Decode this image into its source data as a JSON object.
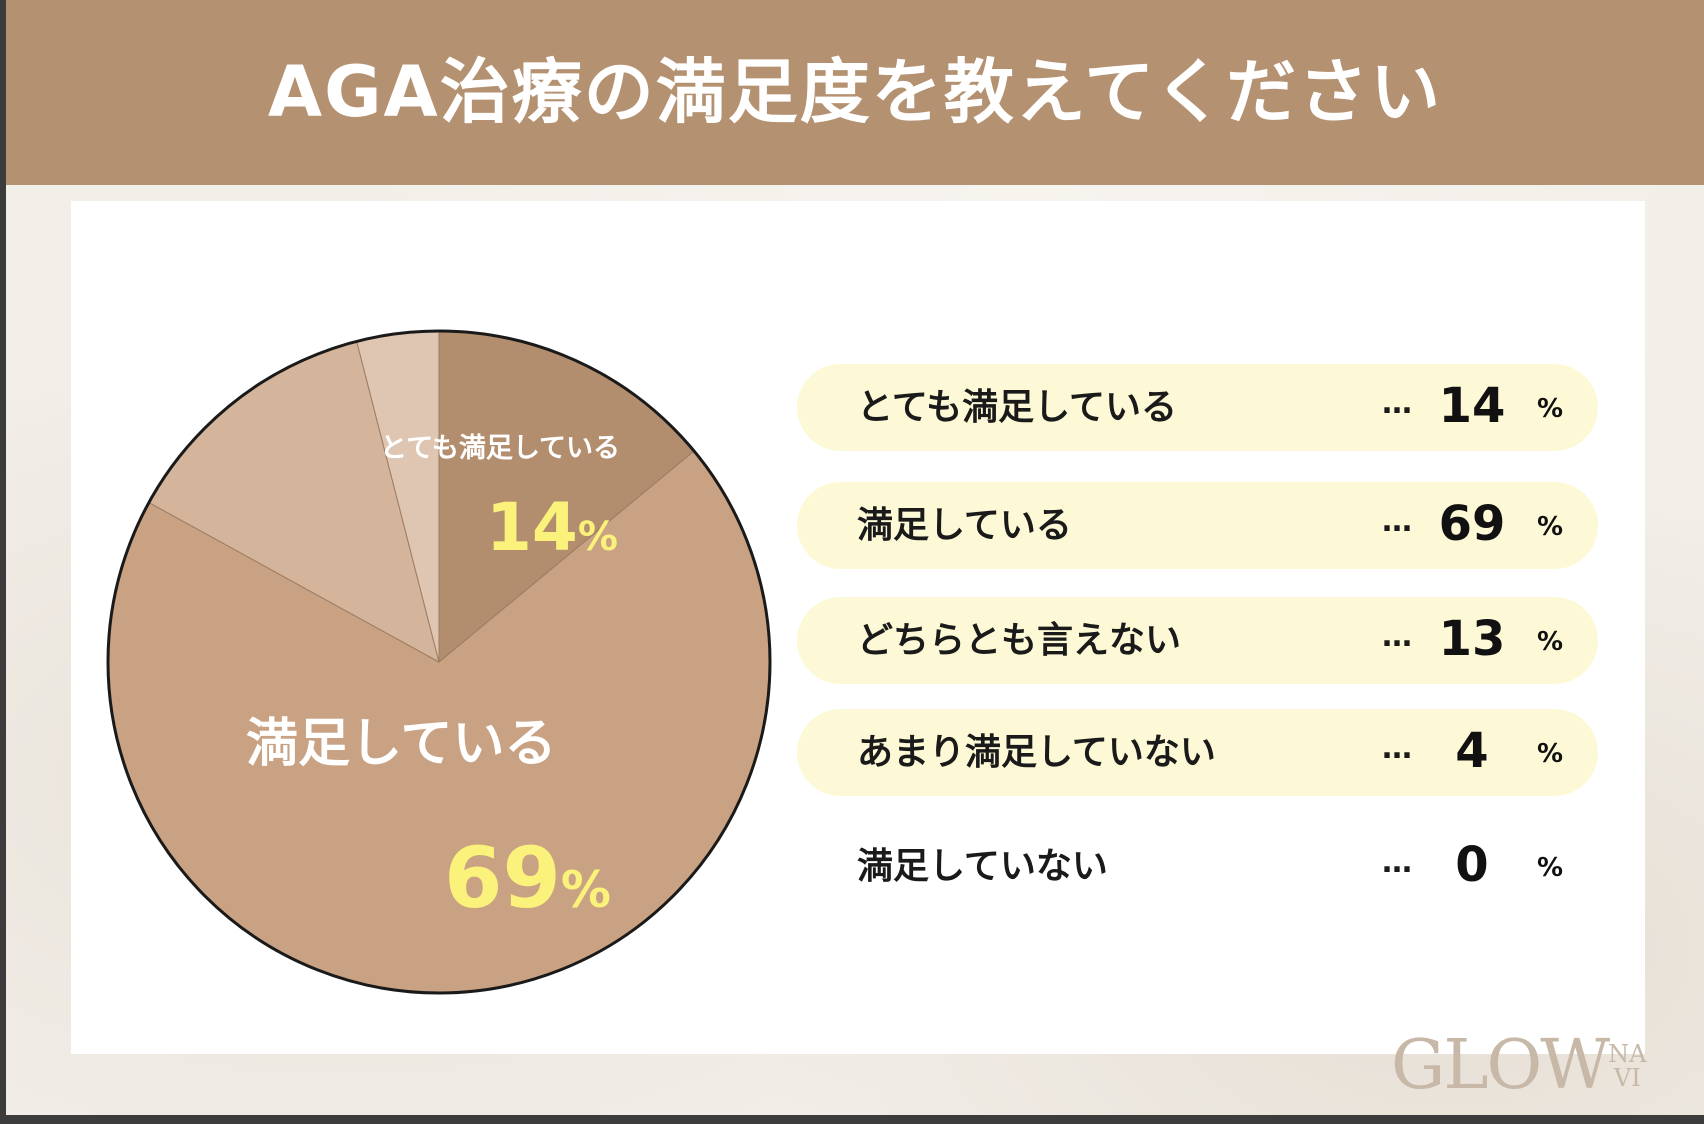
{
  "title": "AGA治療の満足度を教えてください",
  "logo": "GLOWNAVI",
  "chart_data": {
    "type": "pie",
    "title": "AGA治療の満足度を教えてください",
    "categories": [
      "とても満足している",
      "満足している",
      "どちらとも言えない",
      "あまり満足していない",
      "満足していない"
    ],
    "values": [
      14,
      69,
      13,
      4,
      0
    ],
    "unit": "%",
    "colors": [
      "#b38e6e",
      "#c9a283",
      "#d4b59b",
      "#dec6b3",
      "#e8d8ca"
    ],
    "start": "top",
    "direction": "clockwise",
    "dots": "…",
    "slice_labels": [
      {
        "label": "とても満足している",
        "value": "14",
        "unit": "%"
      },
      {
        "label": "満足している",
        "value": "69",
        "unit": "%"
      }
    ]
  }
}
